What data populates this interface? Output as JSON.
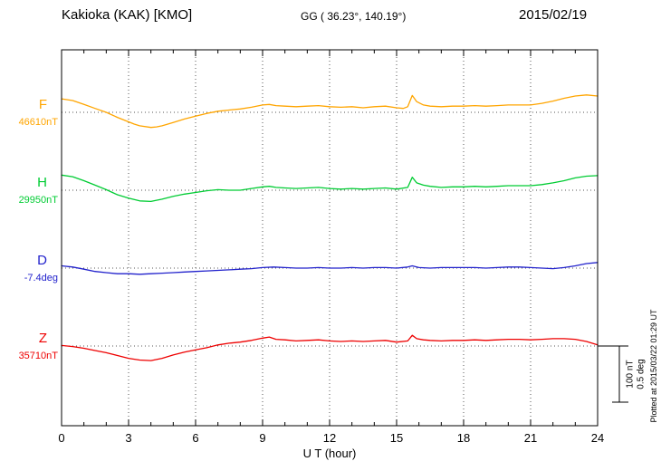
{
  "header": {
    "station": "Kakioka (KAK)  [KMO]",
    "coords": "GG ( 36.23°, 140.19°)",
    "date": "2015/02/19"
  },
  "axis": {
    "xlabel": "U T (hour)"
  },
  "scalebar": {
    "nt_label": "100 nT",
    "deg_label": "0.5 deg"
  },
  "footer": {
    "plotted_at": "Plotted at 2015/03/22 01:29 UT"
  },
  "chart_data": {
    "type": "line",
    "title": "Kakioka (KAK) [KMO] magnetogram 2015/02/19",
    "xlabel": "U T (hour)",
    "x_range": [
      0,
      24
    ],
    "x_ticks": [
      0,
      3,
      6,
      9,
      12,
      15,
      18,
      21,
      24
    ],
    "grid": "dotted vertical at 3h intervals, dotted horizontal at each series baseline",
    "scale_reference": {
      "nT_per_bar": 100,
      "deg_per_bar": 0.5
    },
    "series": [
      {
        "name": "F",
        "baseline_label": "46610nT",
        "baseline_value": 46610,
        "unit": "nT",
        "color": "#ffa500",
        "points": [
          [
            0,
            24
          ],
          [
            0.5,
            21
          ],
          [
            1,
            14
          ],
          [
            1.5,
            7
          ],
          [
            2,
            0
          ],
          [
            2.5,
            -9
          ],
          [
            3,
            -17
          ],
          [
            3.25,
            -21
          ],
          [
            3.5,
            -24
          ],
          [
            4,
            -27
          ],
          [
            4.25,
            -26
          ],
          [
            4.5,
            -24
          ],
          [
            5,
            -18
          ],
          [
            5.5,
            -12
          ],
          [
            6,
            -7
          ],
          [
            6.5,
            -2
          ],
          [
            7,
            2
          ],
          [
            7.5,
            4
          ],
          [
            8,
            6
          ],
          [
            8.5,
            9
          ],
          [
            9,
            13
          ],
          [
            9.3,
            14
          ],
          [
            9.6,
            12
          ],
          [
            10,
            11
          ],
          [
            10.5,
            10
          ],
          [
            11,
            11
          ],
          [
            11.5,
            12
          ],
          [
            12,
            10
          ],
          [
            12.5,
            9
          ],
          [
            13,
            10
          ],
          [
            13.5,
            8
          ],
          [
            14,
            10
          ],
          [
            14.5,
            11
          ],
          [
            15,
            8
          ],
          [
            15.3,
            7
          ],
          [
            15.5,
            10
          ],
          [
            15.7,
            30
          ],
          [
            15.9,
            19
          ],
          [
            16.2,
            13
          ],
          [
            16.5,
            11
          ],
          [
            17,
            10
          ],
          [
            17.5,
            11
          ],
          [
            18,
            11
          ],
          [
            18.5,
            12
          ],
          [
            19,
            11
          ],
          [
            19.5,
            12
          ],
          [
            20,
            13
          ],
          [
            20.5,
            13
          ],
          [
            21,
            13
          ],
          [
            21.5,
            16
          ],
          [
            22,
            20
          ],
          [
            22.5,
            25
          ],
          [
            23,
            29
          ],
          [
            23.5,
            31
          ],
          [
            24,
            29
          ]
        ]
      },
      {
        "name": "H",
        "baseline_label": "29950nT",
        "baseline_value": 29950,
        "unit": "nT",
        "color": "#00cc33",
        "points": [
          [
            0,
            27
          ],
          [
            0.5,
            24
          ],
          [
            1,
            17
          ],
          [
            1.5,
            9
          ],
          [
            2,
            1
          ],
          [
            2.5,
            -8
          ],
          [
            3,
            -14
          ],
          [
            3.5,
            -19
          ],
          [
            4,
            -20
          ],
          [
            4.5,
            -16
          ],
          [
            5,
            -11
          ],
          [
            5.5,
            -7
          ],
          [
            6,
            -4
          ],
          [
            6.5,
            -1
          ],
          [
            7,
            1
          ],
          [
            7.5,
            0
          ],
          [
            8,
            0
          ],
          [
            8.5,
            3
          ],
          [
            9,
            6
          ],
          [
            9.3,
            7
          ],
          [
            9.6,
            5
          ],
          [
            10,
            4
          ],
          [
            10.5,
            3
          ],
          [
            11,
            4
          ],
          [
            11.5,
            5
          ],
          [
            12,
            3
          ],
          [
            12.5,
            2
          ],
          [
            13,
            3
          ],
          [
            13.5,
            2
          ],
          [
            14,
            3
          ],
          [
            14.5,
            4
          ],
          [
            15,
            2
          ],
          [
            15.5,
            5
          ],
          [
            15.7,
            23
          ],
          [
            15.9,
            13
          ],
          [
            16.2,
            9
          ],
          [
            16.5,
            7
          ],
          [
            17,
            5
          ],
          [
            17.5,
            6
          ],
          [
            18,
            6
          ],
          [
            18.5,
            7
          ],
          [
            19,
            6
          ],
          [
            19.5,
            7
          ],
          [
            20,
            8
          ],
          [
            20.5,
            8
          ],
          [
            21,
            8
          ],
          [
            21.5,
            10
          ],
          [
            22,
            13
          ],
          [
            22.5,
            17
          ],
          [
            23,
            22
          ],
          [
            23.5,
            25
          ],
          [
            24,
            26
          ]
        ]
      },
      {
        "name": "D",
        "baseline_label": "-7.4deg",
        "baseline_value": -7.4,
        "unit": "deg",
        "color": "#2222cc",
        "points": [
          [
            0,
            0.02
          ],
          [
            0.5,
            0.01
          ],
          [
            1,
            -0.01
          ],
          [
            1.5,
            -0.03
          ],
          [
            2,
            -0.04
          ],
          [
            2.5,
            -0.05
          ],
          [
            3,
            -0.05
          ],
          [
            3.5,
            -0.055
          ],
          [
            4,
            -0.05
          ],
          [
            4.5,
            -0.045
          ],
          [
            5,
            -0.04
          ],
          [
            5.5,
            -0.035
          ],
          [
            6,
            -0.03
          ],
          [
            6.5,
            -0.025
          ],
          [
            7,
            -0.02
          ],
          [
            7.5,
            -0.015
          ],
          [
            8,
            -0.01
          ],
          [
            8.5,
            -0.005
          ],
          [
            9,
            0.005
          ],
          [
            9.5,
            0.01
          ],
          [
            10,
            0.005
          ],
          [
            10.5,
            0
          ],
          [
            11,
            0
          ],
          [
            11.5,
            0.005
          ],
          [
            12,
            0
          ],
          [
            12.5,
            0
          ],
          [
            13,
            0.005
          ],
          [
            13.5,
            0
          ],
          [
            14,
            0.005
          ],
          [
            14.5,
            0.005
          ],
          [
            15,
            0
          ],
          [
            15.5,
            0.01
          ],
          [
            15.7,
            0.02
          ],
          [
            16,
            0.005
          ],
          [
            16.5,
            0
          ],
          [
            17,
            0.005
          ],
          [
            17.5,
            0.005
          ],
          [
            18,
            0.005
          ],
          [
            18.5,
            0.005
          ],
          [
            19,
            0
          ],
          [
            19.5,
            0.005
          ],
          [
            20,
            0.01
          ],
          [
            20.5,
            0.01
          ],
          [
            21,
            0.005
          ],
          [
            21.5,
            0
          ],
          [
            22,
            -0.005
          ],
          [
            22.5,
            0.005
          ],
          [
            23,
            0.02
          ],
          [
            23.5,
            0.04
          ],
          [
            24,
            0.05
          ]
        ]
      },
      {
        "name": "Z",
        "baseline_label": "35710nT",
        "baseline_value": 35710,
        "unit": "nT",
        "color": "#ee0000",
        "points": [
          [
            0,
            1
          ],
          [
            0.5,
            -1
          ],
          [
            1,
            -4
          ],
          [
            1.5,
            -8
          ],
          [
            2,
            -12
          ],
          [
            2.5,
            -17
          ],
          [
            3,
            -22
          ],
          [
            3.5,
            -25
          ],
          [
            4,
            -26
          ],
          [
            4.5,
            -22
          ],
          [
            5,
            -16
          ],
          [
            5.5,
            -11
          ],
          [
            6,
            -7
          ],
          [
            6.5,
            -3
          ],
          [
            7,
            2
          ],
          [
            7.5,
            5
          ],
          [
            8,
            7
          ],
          [
            8.5,
            10
          ],
          [
            9,
            14
          ],
          [
            9.3,
            16
          ],
          [
            9.6,
            12
          ],
          [
            10,
            11
          ],
          [
            10.5,
            9
          ],
          [
            11,
            10
          ],
          [
            11.5,
            11
          ],
          [
            12,
            9
          ],
          [
            12.5,
            8
          ],
          [
            13,
            9
          ],
          [
            13.5,
            8
          ],
          [
            14,
            9
          ],
          [
            14.5,
            10
          ],
          [
            15,
            7
          ],
          [
            15.5,
            9
          ],
          [
            15.7,
            19
          ],
          [
            15.9,
            13
          ],
          [
            16.2,
            11
          ],
          [
            16.5,
            10
          ],
          [
            17,
            9
          ],
          [
            17.5,
            10
          ],
          [
            18,
            10
          ],
          [
            18.5,
            11
          ],
          [
            19,
            10
          ],
          [
            19.5,
            11
          ],
          [
            20,
            12
          ],
          [
            20.5,
            12
          ],
          [
            21,
            11
          ],
          [
            21.5,
            12
          ],
          [
            22,
            13
          ],
          [
            22.5,
            13
          ],
          [
            23,
            12
          ],
          [
            23.5,
            8
          ],
          [
            24,
            2
          ]
        ]
      }
    ]
  }
}
